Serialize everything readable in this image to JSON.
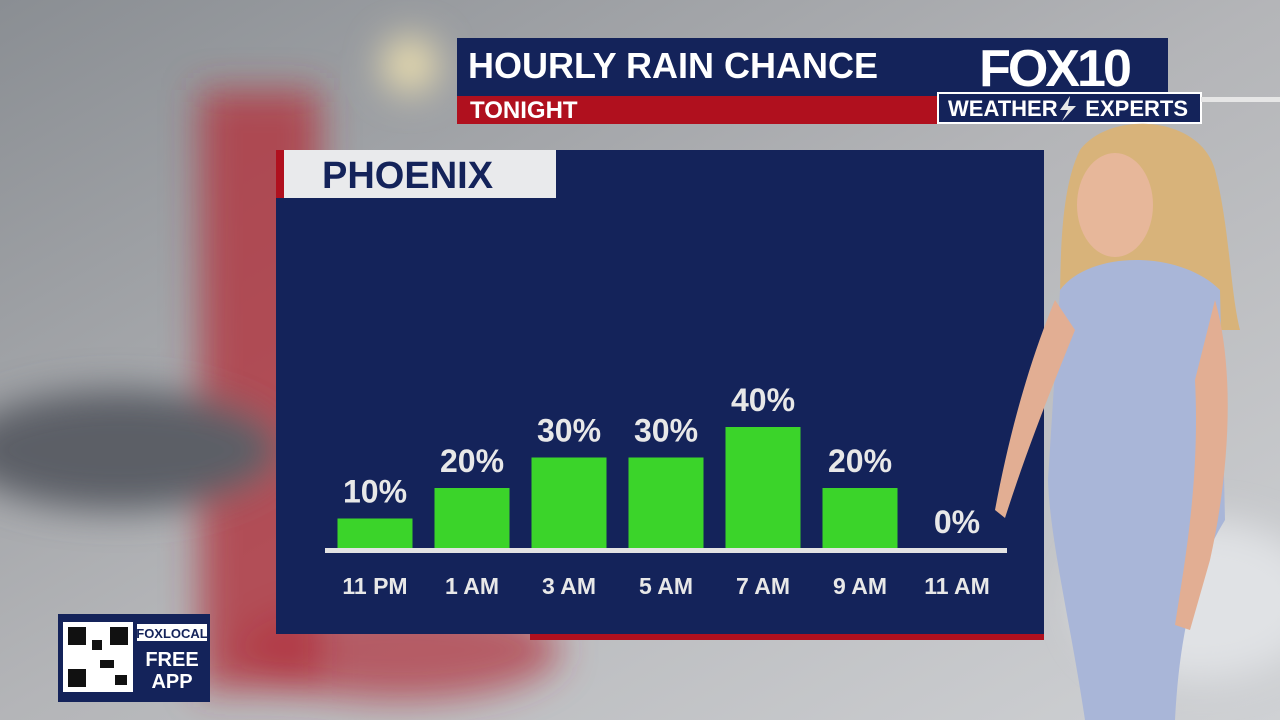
{
  "header": {
    "title": "HOURLY RAIN CHANCE",
    "subtitle": "TONIGHT"
  },
  "branding": {
    "logo": "FOX10",
    "tagline_left": "WEATHER",
    "tagline_right": "EXPERTS",
    "app_badge": "FOXLOCAL",
    "app_text_1": "FREE",
    "app_text_2": "APP"
  },
  "chart_data": {
    "type": "bar",
    "title": "PHOENIX",
    "categories": [
      "11 PM",
      "1 AM",
      "3 AM",
      "5 AM",
      "7 AM",
      "9 AM",
      "11 AM"
    ],
    "values": [
      10,
      20,
      30,
      30,
      40,
      20,
      0
    ],
    "value_labels": [
      "10%",
      "20%",
      "30%",
      "30%",
      "40%",
      "20%",
      "0%"
    ],
    "color": "#3bd42a"
  }
}
